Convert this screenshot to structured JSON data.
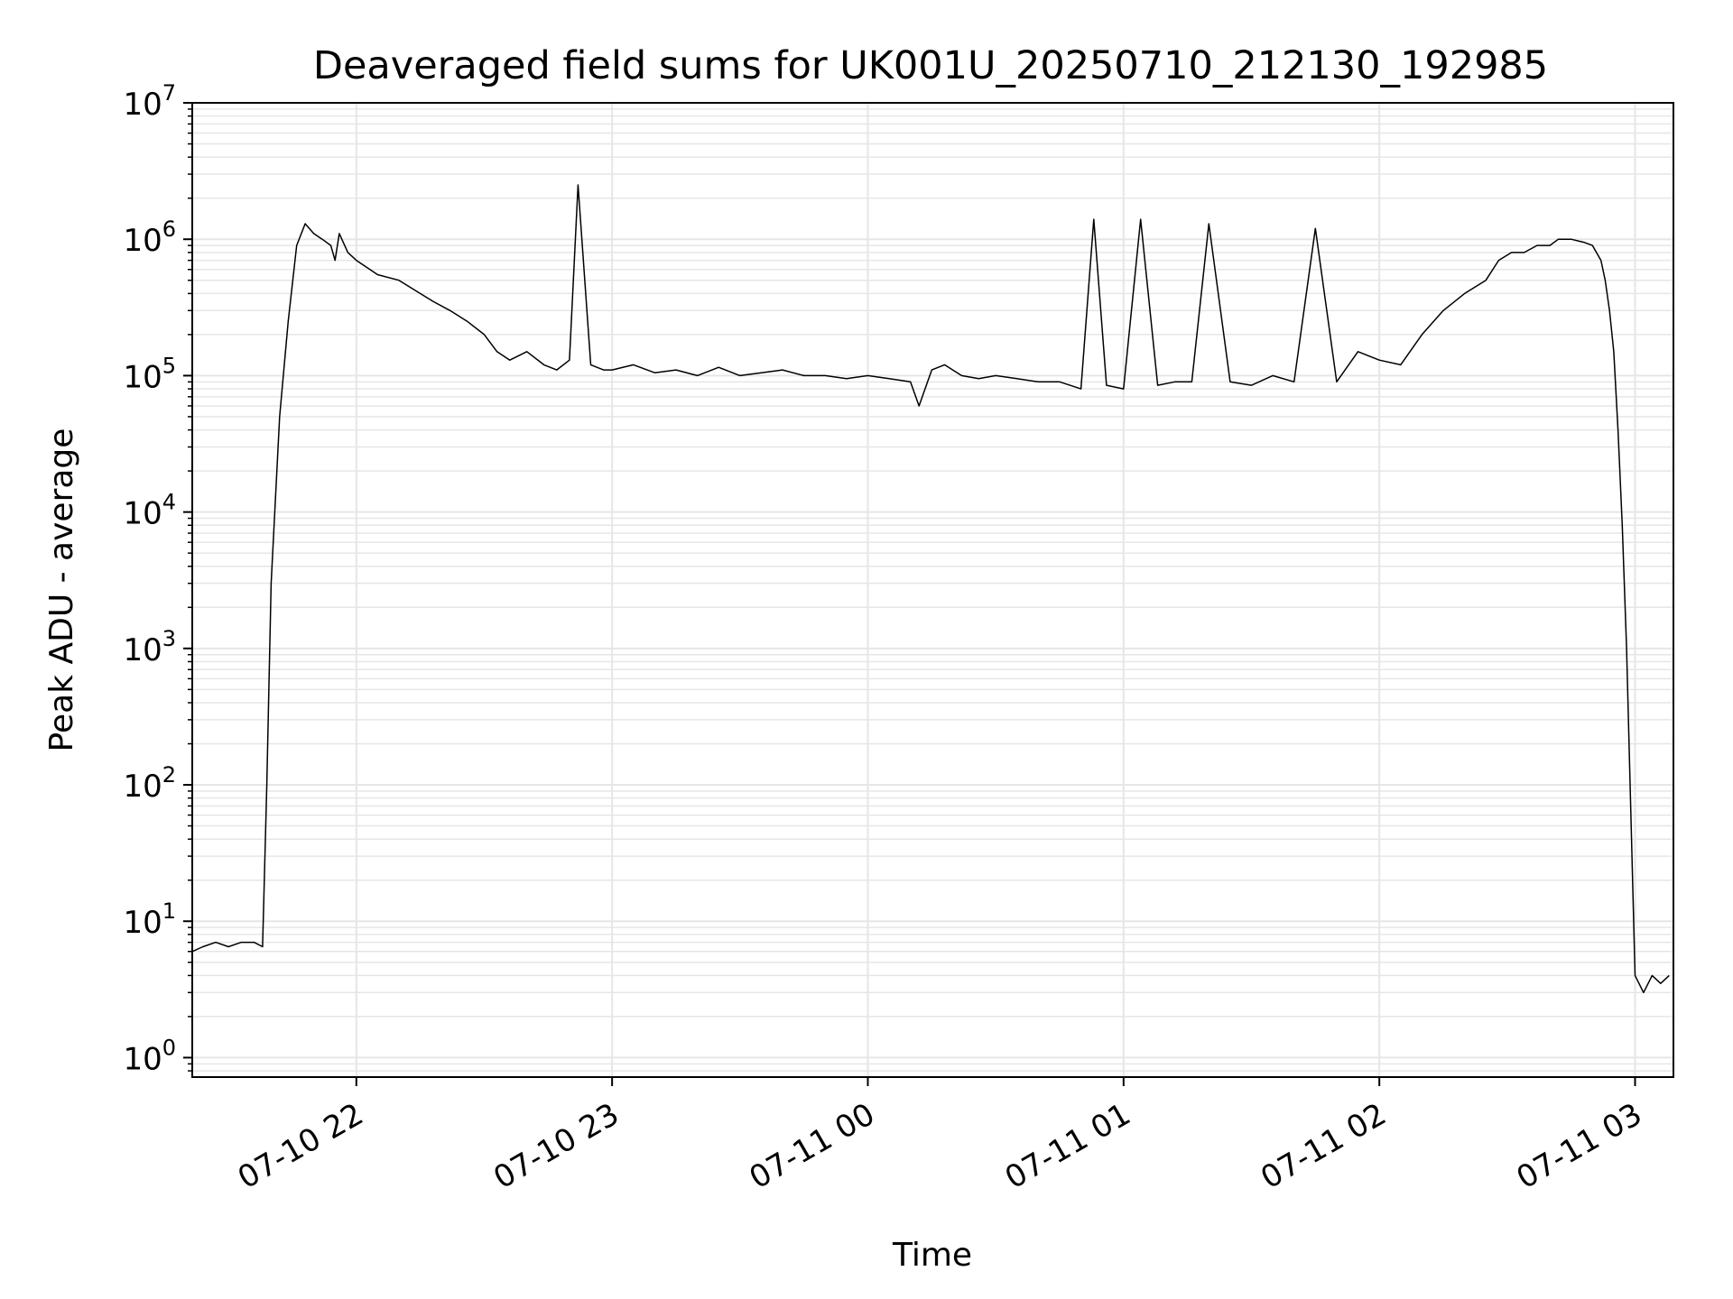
{
  "chart_data": {
    "type": "line",
    "title": "Deaveraged field sums for UK001U_20250710_212130_192985",
    "xlabel": "Time",
    "ylabel": "Peak ADU - average",
    "yscale": "log",
    "ylim": [
      0.72,
      10000000
    ],
    "xlim": [
      "2025-07-10 21:21:30",
      "2025-07-11 03:09:00"
    ],
    "grid": true,
    "line_color": "#000000",
    "grid_color": "#e6e6e6",
    "x_ticks": [
      {
        "value": "2025-07-10 22:00",
        "label": "07-10 22"
      },
      {
        "value": "2025-07-10 23:00",
        "label": "07-10 23"
      },
      {
        "value": "2025-07-11 00:00",
        "label": "07-11 00"
      },
      {
        "value": "2025-07-11 01:00",
        "label": "07-11 01"
      },
      {
        "value": "2025-07-11 02:00",
        "label": "07-11 02"
      },
      {
        "value": "2025-07-11 03:00",
        "label": "07-11 03"
      }
    ],
    "y_ticks": [
      {
        "value": 1,
        "base": "10",
        "exp": "0"
      },
      {
        "value": 10,
        "base": "10",
        "exp": "1"
      },
      {
        "value": 100,
        "base": "10",
        "exp": "2"
      },
      {
        "value": 1000,
        "base": "10",
        "exp": "3"
      },
      {
        "value": 10000,
        "base": "10",
        "exp": "4"
      },
      {
        "value": 100000,
        "base": "10",
        "exp": "5"
      },
      {
        "value": 1000000,
        "base": "10",
        "exp": "6"
      },
      {
        "value": 10000000,
        "base": "10",
        "exp": "7"
      }
    ],
    "series": [
      {
        "x": [
          "2025-07-10 21:21:30",
          "2025-07-10 21:24",
          "2025-07-10 21:27",
          "2025-07-10 21:30",
          "2025-07-10 21:33",
          "2025-07-10 21:36",
          "2025-07-10 21:38",
          "2025-07-10 21:39",
          "2025-07-10 21:40",
          "2025-07-10 21:42",
          "2025-07-10 21:44",
          "2025-07-10 21:46",
          "2025-07-10 21:48",
          "2025-07-10 21:50",
          "2025-07-10 21:52",
          "2025-07-10 21:54",
          "2025-07-10 21:55",
          "2025-07-10 21:56",
          "2025-07-10 21:58",
          "2025-07-10 22:00",
          "2025-07-10 22:05",
          "2025-07-10 22:10",
          "2025-07-10 22:15",
          "2025-07-10 22:18",
          "2025-07-10 22:22",
          "2025-07-10 22:26",
          "2025-07-10 22:30",
          "2025-07-10 22:33",
          "2025-07-10 22:36",
          "2025-07-10 22:40",
          "2025-07-10 22:44",
          "2025-07-10 22:47",
          "2025-07-10 22:50",
          "2025-07-10 22:52",
          "2025-07-10 22:55",
          "2025-07-10 22:58",
          "2025-07-10 23:00",
          "2025-07-10 23:05",
          "2025-07-10 23:10",
          "2025-07-10 23:15",
          "2025-07-10 23:20",
          "2025-07-10 23:25",
          "2025-07-10 23:30",
          "2025-07-10 23:35",
          "2025-07-10 23:40",
          "2025-07-10 23:45",
          "2025-07-10 23:50",
          "2025-07-10 23:55",
          "2025-07-11 00:00",
          "2025-07-11 00:05",
          "2025-07-11 00:10",
          "2025-07-11 00:12",
          "2025-07-11 00:15",
          "2025-07-11 00:18",
          "2025-07-11 00:22",
          "2025-07-11 00:26",
          "2025-07-11 00:30",
          "2025-07-11 00:35",
          "2025-07-11 00:40",
          "2025-07-11 00:45",
          "2025-07-11 00:50",
          "2025-07-11 00:53",
          "2025-07-11 00:56",
          "2025-07-11 01:00",
          "2025-07-11 01:04",
          "2025-07-11 01:08",
          "2025-07-11 01:12",
          "2025-07-11 01:16",
          "2025-07-11 01:20",
          "2025-07-11 01:25",
          "2025-07-11 01:30",
          "2025-07-11 01:35",
          "2025-07-11 01:40",
          "2025-07-11 01:45",
          "2025-07-11 01:50",
          "2025-07-11 01:55",
          "2025-07-11 02:00",
          "2025-07-11 02:05",
          "2025-07-11 02:10",
          "2025-07-11 02:15",
          "2025-07-11 02:20",
          "2025-07-11 02:25",
          "2025-07-11 02:28",
          "2025-07-11 02:31",
          "2025-07-11 02:34",
          "2025-07-11 02:37",
          "2025-07-11 02:40",
          "2025-07-11 02:42",
          "2025-07-11 02:45",
          "2025-07-11 02:48",
          "2025-07-11 02:50",
          "2025-07-11 02:52",
          "2025-07-11 02:53",
          "2025-07-11 02:54",
          "2025-07-11 02:55",
          "2025-07-11 02:56",
          "2025-07-11 02:57",
          "2025-07-11 02:58",
          "2025-07-11 03:00",
          "2025-07-11 03:02",
          "2025-07-11 03:04",
          "2025-07-11 03:06",
          "2025-07-11 03:08"
        ],
        "y": [
          6,
          6.5,
          7,
          6.5,
          7,
          7,
          6.5,
          100,
          3000,
          50000,
          250000,
          900000,
          1300000,
          1100000,
          1000000,
          900000,
          700000,
          1100000,
          800000,
          700000,
          550000,
          500000,
          400000,
          350000,
          300000,
          250000,
          200000,
          150000,
          130000,
          150000,
          120000,
          110000,
          130000,
          2500000,
          120000,
          110000,
          110000,
          120000,
          105000,
          110000,
          100000,
          115000,
          100000,
          105000,
          110000,
          100000,
          100000,
          95000,
          100000,
          95000,
          90000,
          60000,
          110000,
          120000,
          100000,
          95000,
          100000,
          95000,
          90000,
          90000,
          80000,
          1400000,
          85000,
          80000,
          1400000,
          85000,
          90000,
          90000,
          1300000,
          90000,
          85000,
          100000,
          90000,
          1200000,
          90000,
          150000,
          130000,
          120000,
          200000,
          300000,
          400000,
          500000,
          700000,
          800000,
          800000,
          900000,
          900000,
          1000000,
          1000000,
          950000,
          900000,
          700000,
          500000,
          300000,
          150000,
          40000,
          8000,
          1000,
          4,
          3,
          4,
          3.5,
          4
        ]
      }
    ]
  }
}
